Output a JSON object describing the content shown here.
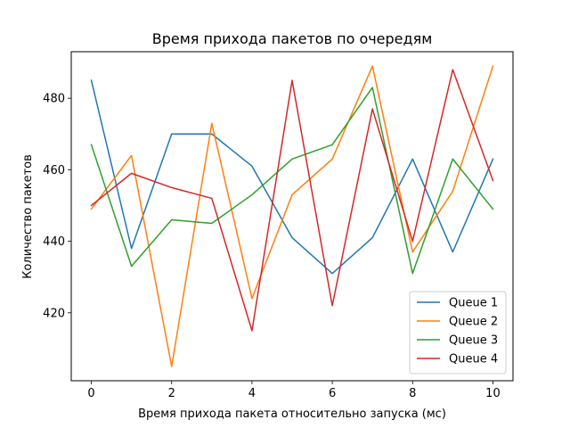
{
  "chart_data": {
    "type": "line",
    "title": "Время прихода пакетов по очередям",
    "xlabel": "Время прихода пакета относительно запуска (мс)",
    "ylabel": "Количество пакетов",
    "x": [
      0,
      1,
      2,
      3,
      4,
      5,
      6,
      7,
      8,
      9,
      10
    ],
    "xlim": [
      -0.5,
      10.5
    ],
    "ylim": [
      401,
      493
    ],
    "x_ticks": [
      0,
      2,
      4,
      6,
      8,
      10
    ],
    "y_ticks": [
      420,
      440,
      460,
      480
    ],
    "grid": false,
    "legend_position": "lower-right",
    "series": [
      {
        "name": "Queue 1",
        "color": "#1f77b4",
        "values": [
          485,
          438,
          470,
          470,
          461,
          441,
          431,
          441,
          463,
          437,
          463
        ]
      },
      {
        "name": "Queue 2",
        "color": "#ff7f0e",
        "values": [
          449,
          464,
          405,
          473,
          424,
          453,
          463,
          489,
          437,
          454,
          489
        ]
      },
      {
        "name": "Queue 3",
        "color": "#2ca02c",
        "values": [
          467,
          433,
          446,
          445,
          453,
          463,
          467,
          483,
          431,
          463,
          449
        ]
      },
      {
        "name": "Queue 4",
        "color": "#d62728",
        "values": [
          450,
          459,
          455,
          452,
          415,
          485,
          422,
          477,
          440,
          488,
          457
        ]
      }
    ]
  }
}
